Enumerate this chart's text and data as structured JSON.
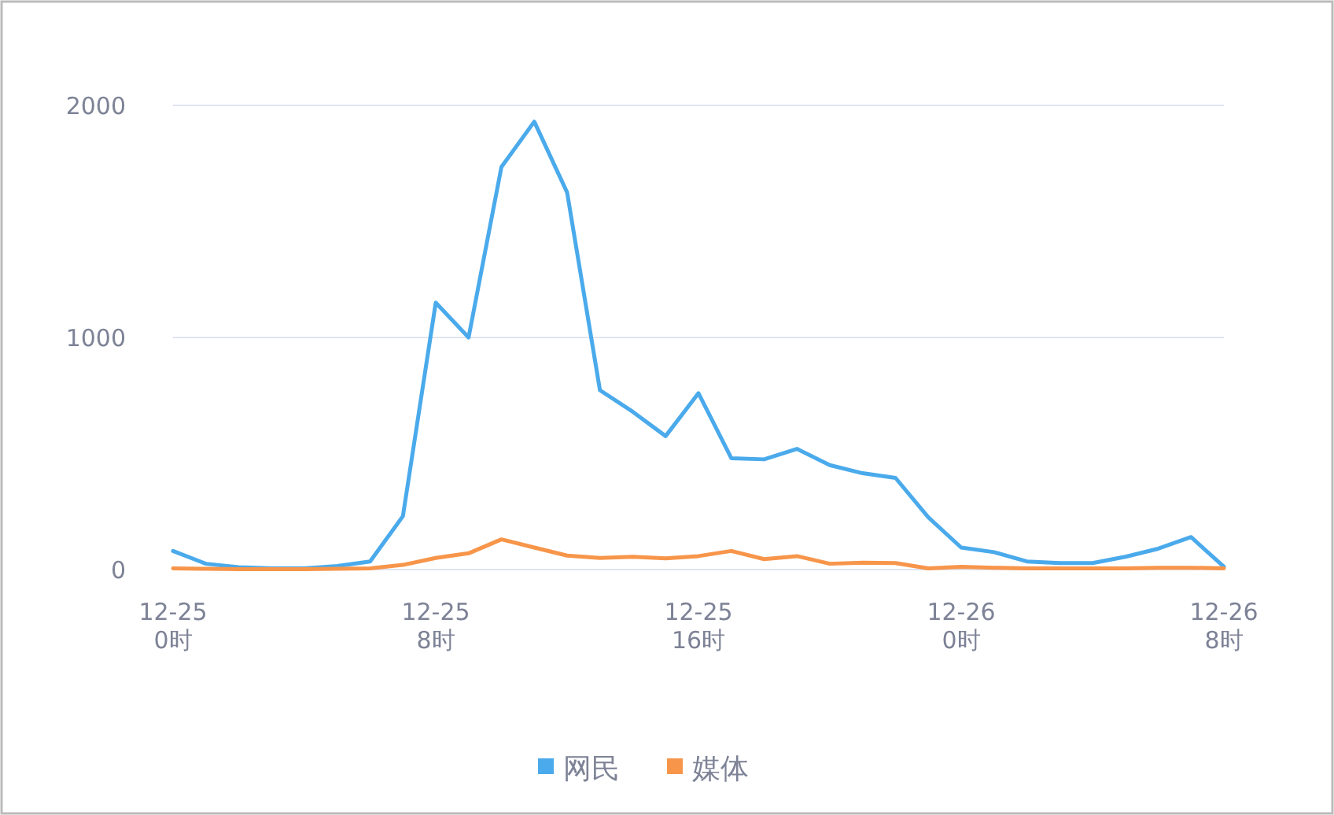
{
  "chart_data": {
    "type": "line",
    "categories": [
      "12-25\n0时",
      null,
      null,
      null,
      null,
      null,
      null,
      null,
      "12-25\n8时",
      null,
      null,
      null,
      null,
      null,
      null,
      null,
      "12-25\n16时",
      null,
      null,
      null,
      null,
      null,
      null,
      null,
      "12-26\n0时",
      null,
      null,
      null,
      null,
      null,
      null,
      null,
      "12-26\n8时"
    ],
    "series": [
      {
        "name": "网民",
        "color": "#4aaaeb",
        "values": [
          80,
          25,
          10,
          5,
          5,
          15,
          35,
          230,
          1150,
          1000,
          1735,
          1930,
          1625,
          773,
          680,
          575,
          760,
          480,
          475,
          520,
          450,
          415,
          395,
          225,
          95,
          75,
          35,
          28,
          28,
          55,
          90,
          140,
          12
        ]
      },
      {
        "name": "媒体",
        "color": "#f7954a",
        "values": [
          5,
          3,
          2,
          2,
          2,
          3,
          5,
          20,
          50,
          70,
          130,
          95,
          60,
          50,
          55,
          48,
          58,
          80,
          45,
          58,
          25,
          30,
          28,
          5,
          12,
          8,
          5,
          5,
          5,
          5,
          8,
          8,
          5
        ]
      }
    ],
    "ylim": [
      0,
      2000
    ],
    "yticks": [
      0,
      1000,
      2000
    ],
    "grid": "y",
    "legend": "bottom",
    "marker": "none",
    "line_style": "solid"
  }
}
